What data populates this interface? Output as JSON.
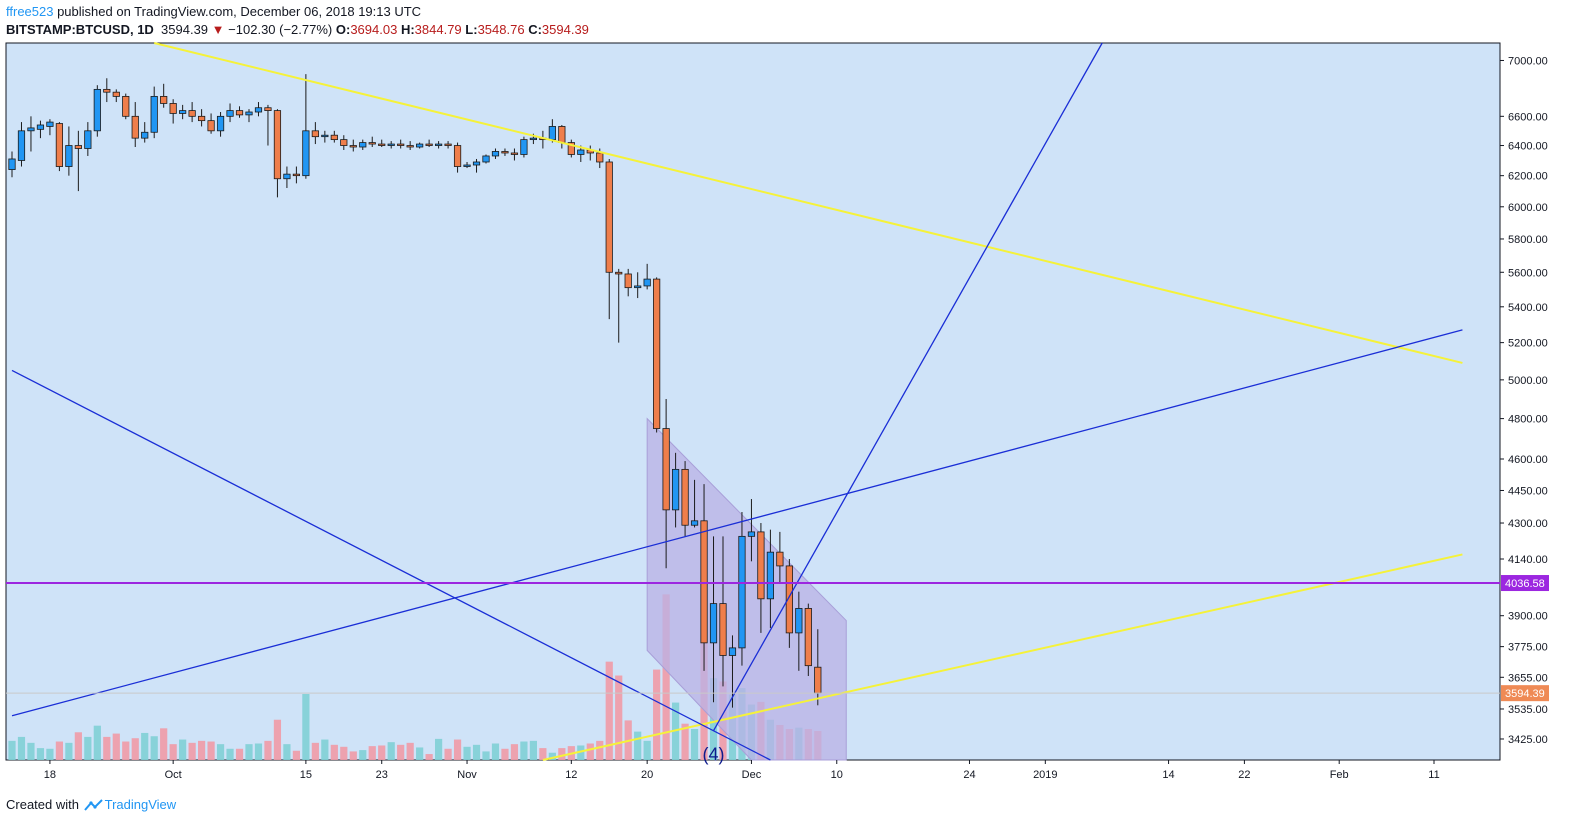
{
  "header": {
    "author": "ffree523",
    "published_text": " published on TradingView.com, December 06, 2018 19:13 UTC",
    "symbol": "BITSTAMP:BTCUSD, 1D",
    "last": "3594.39",
    "arrow": "▼",
    "change": "−102.30 (−2.77%)",
    "o_label": "O:",
    "o_value": "3694.03",
    "h_label": "H:",
    "h_value": "3844.79",
    "l_label": "L:",
    "l_value": "3548.76",
    "c_label": "C:",
    "c_value": "3594.39"
  },
  "footer": {
    "created_with": "Created with",
    "brand": "TradingView"
  },
  "colors": {
    "background": "#cfe3f8",
    "up": "#2196f3",
    "down": "#ef7e4b",
    "vol_up": "#7fcfd5",
    "vol_down": "#f09aa6",
    "yellow_line": "#f5f23a",
    "blue_line": "#1a2ed6",
    "purple_line": "#9c27e0",
    "channel_fill": "#b9b1e6",
    "price_label_bg": "#ef8a55"
  },
  "chart_data": {
    "type": "candlestick",
    "title": "BITSTAMP:BTCUSD, 1D",
    "y_scale": "log",
    "ylim": [
      3350,
      7130
    ],
    "price_ticks": [
      7000,
      6600,
      6400,
      6200,
      6000,
      5800,
      5600,
      5400,
      5200,
      5000,
      4800,
      4600,
      4450,
      4300,
      4140,
      3900,
      3775,
      3655,
      3535,
      3425
    ],
    "price_tick_labels": [
      "7000.00",
      "6600.00",
      "6400.00",
      "6200.00",
      "6000.00",
      "5800.00",
      "5600.00",
      "5400.00",
      "5200.00",
      "5000.00",
      "4800.00",
      "4600.00",
      "4450.00",
      "4300.00",
      "4140.00",
      "3900.00",
      "3775.00",
      "3655.00",
      "3535.00",
      "3425.00"
    ],
    "time_ticks": [
      {
        "label": "18",
        "day": 4
      },
      {
        "label": "Oct",
        "day": 17
      },
      {
        "label": "15",
        "day": 31
      },
      {
        "label": "23",
        "day": 39
      },
      {
        "label": "Nov",
        "day": 48
      },
      {
        "label": "12",
        "day": 59
      },
      {
        "label": "20",
        "day": 67
      },
      {
        "label": "Dec",
        "day": 78
      },
      {
        "label": "10",
        "day": 87
      },
      {
        "label": "24",
        "day": 101
      },
      {
        "label": "2019",
        "day": 109
      },
      {
        "label": "14",
        "day": 122
      },
      {
        "label": "22",
        "day": 130
      },
      {
        "label": "Feb",
        "day": 140
      },
      {
        "label": "11",
        "day": 150
      }
    ],
    "note_days": "day index 0 = first visible candle (Sep 14, 2018)",
    "candles": [
      {
        "d": 0,
        "o": 6240,
        "h": 6360,
        "l": 6190,
        "c": 6310
      },
      {
        "d": 1,
        "o": 6300,
        "h": 6560,
        "l": 6260,
        "c": 6500
      },
      {
        "d": 2,
        "o": 6500,
        "h": 6600,
        "l": 6360,
        "c": 6520
      },
      {
        "d": 3,
        "o": 6510,
        "h": 6570,
        "l": 6450,
        "c": 6540
      },
      {
        "d": 4,
        "o": 6530,
        "h": 6580,
        "l": 6470,
        "c": 6560
      },
      {
        "d": 5,
        "o": 6550,
        "h": 6560,
        "l": 6230,
        "c": 6260
      },
      {
        "d": 6,
        "o": 6260,
        "h": 6530,
        "l": 6200,
        "c": 6400
      },
      {
        "d": 7,
        "o": 6400,
        "h": 6500,
        "l": 6100,
        "c": 6380
      },
      {
        "d": 8,
        "o": 6380,
        "h": 6560,
        "l": 6330,
        "c": 6500
      },
      {
        "d": 9,
        "o": 6500,
        "h": 6820,
        "l": 6460,
        "c": 6790
      },
      {
        "d": 10,
        "o": 6790,
        "h": 6870,
        "l": 6700,
        "c": 6770
      },
      {
        "d": 11,
        "o": 6770,
        "h": 6790,
        "l": 6700,
        "c": 6740
      },
      {
        "d": 12,
        "o": 6740,
        "h": 6760,
        "l": 6580,
        "c": 6600
      },
      {
        "d": 13,
        "o": 6600,
        "h": 6700,
        "l": 6390,
        "c": 6450
      },
      {
        "d": 14,
        "o": 6450,
        "h": 6560,
        "l": 6420,
        "c": 6490
      },
      {
        "d": 15,
        "o": 6490,
        "h": 6810,
        "l": 6450,
        "c": 6740
      },
      {
        "d": 16,
        "o": 6740,
        "h": 6830,
        "l": 6660,
        "c": 6690
      },
      {
        "d": 17,
        "o": 6690,
        "h": 6720,
        "l": 6550,
        "c": 6620
      },
      {
        "d": 18,
        "o": 6620,
        "h": 6680,
        "l": 6580,
        "c": 6640
      },
      {
        "d": 19,
        "o": 6640,
        "h": 6700,
        "l": 6560,
        "c": 6600
      },
      {
        "d": 20,
        "o": 6600,
        "h": 6650,
        "l": 6530,
        "c": 6570
      },
      {
        "d": 21,
        "o": 6570,
        "h": 6620,
        "l": 6480,
        "c": 6500
      },
      {
        "d": 22,
        "o": 6500,
        "h": 6630,
        "l": 6460,
        "c": 6600
      },
      {
        "d": 23,
        "o": 6600,
        "h": 6690,
        "l": 6560,
        "c": 6640
      },
      {
        "d": 24,
        "o": 6640,
        "h": 6670,
        "l": 6590,
        "c": 6610
      },
      {
        "d": 25,
        "o": 6610,
        "h": 6650,
        "l": 6560,
        "c": 6630
      },
      {
        "d": 26,
        "o": 6630,
        "h": 6700,
        "l": 6600,
        "c": 6660
      },
      {
        "d": 27,
        "o": 6660,
        "h": 6680,
        "l": 6400,
        "c": 6640
      },
      {
        "d": 28,
        "o": 6640,
        "h": 6650,
        "l": 6060,
        "c": 6180
      },
      {
        "d": 29,
        "o": 6180,
        "h": 6260,
        "l": 6120,
        "c": 6210
      },
      {
        "d": 30,
        "o": 6210,
        "h": 6260,
        "l": 6150,
        "c": 6200
      },
      {
        "d": 31,
        "o": 6200,
        "h": 6900,
        "l": 6180,
        "c": 6500
      },
      {
        "d": 32,
        "o": 6500,
        "h": 6560,
        "l": 6410,
        "c": 6460
      },
      {
        "d": 33,
        "o": 6460,
        "h": 6500,
        "l": 6420,
        "c": 6470
      },
      {
        "d": 34,
        "o": 6470,
        "h": 6500,
        "l": 6420,
        "c": 6440
      },
      {
        "d": 35,
        "o": 6440,
        "h": 6470,
        "l": 6370,
        "c": 6400
      },
      {
        "d": 36,
        "o": 6400,
        "h": 6440,
        "l": 6360,
        "c": 6390
      },
      {
        "d": 37,
        "o": 6390,
        "h": 6440,
        "l": 6370,
        "c": 6420
      },
      {
        "d": 38,
        "o": 6420,
        "h": 6460,
        "l": 6390,
        "c": 6410
      },
      {
        "d": 39,
        "o": 6410,
        "h": 6440,
        "l": 6390,
        "c": 6400
      },
      {
        "d": 40,
        "o": 6400,
        "h": 6430,
        "l": 6380,
        "c": 6410
      },
      {
        "d": 41,
        "o": 6410,
        "h": 6440,
        "l": 6380,
        "c": 6400
      },
      {
        "d": 42,
        "o": 6400,
        "h": 6430,
        "l": 6370,
        "c": 6390
      },
      {
        "d": 43,
        "o": 6390,
        "h": 6420,
        "l": 6380,
        "c": 6410
      },
      {
        "d": 44,
        "o": 6410,
        "h": 6440,
        "l": 6390,
        "c": 6400
      },
      {
        "d": 45,
        "o": 6400,
        "h": 6430,
        "l": 6380,
        "c": 6410
      },
      {
        "d": 46,
        "o": 6410,
        "h": 6430,
        "l": 6380,
        "c": 6400
      },
      {
        "d": 47,
        "o": 6400,
        "h": 6420,
        "l": 6220,
        "c": 6260
      },
      {
        "d": 48,
        "o": 6260,
        "h": 6290,
        "l": 6250,
        "c": 6270
      },
      {
        "d": 49,
        "o": 6270,
        "h": 6310,
        "l": 6220,
        "c": 6290
      },
      {
        "d": 50,
        "o": 6290,
        "h": 6340,
        "l": 6280,
        "c": 6330
      },
      {
        "d": 51,
        "o": 6330,
        "h": 6380,
        "l": 6310,
        "c": 6360
      },
      {
        "d": 52,
        "o": 6360,
        "h": 6380,
        "l": 6330,
        "c": 6350
      },
      {
        "d": 53,
        "o": 6350,
        "h": 6380,
        "l": 6300,
        "c": 6340
      },
      {
        "d": 54,
        "o": 6340,
        "h": 6460,
        "l": 6320,
        "c": 6440
      },
      {
        "d": 55,
        "o": 6440,
        "h": 6480,
        "l": 6410,
        "c": 6450
      },
      {
        "d": 56,
        "o": 6450,
        "h": 6500,
        "l": 6380,
        "c": 6440
      },
      {
        "d": 57,
        "o": 6440,
        "h": 6580,
        "l": 6420,
        "c": 6530
      },
      {
        "d": 58,
        "o": 6530,
        "h": 6540,
        "l": 6380,
        "c": 6420
      },
      {
        "d": 59,
        "o": 6420,
        "h": 6440,
        "l": 6320,
        "c": 6340
      },
      {
        "d": 60,
        "o": 6340,
        "h": 6400,
        "l": 6290,
        "c": 6370
      },
      {
        "d": 61,
        "o": 6370,
        "h": 6400,
        "l": 6300,
        "c": 6350
      },
      {
        "d": 62,
        "o": 6350,
        "h": 6380,
        "l": 6250,
        "c": 6290
      },
      {
        "d": 63,
        "o": 6290,
        "h": 6310,
        "l": 5330,
        "c": 5600
      },
      {
        "d": 64,
        "o": 5600,
        "h": 5620,
        "l": 5200,
        "c": 5590
      },
      {
        "d": 65,
        "o": 5590,
        "h": 5620,
        "l": 5460,
        "c": 5510
      },
      {
        "d": 66,
        "o": 5510,
        "h": 5600,
        "l": 5450,
        "c": 5520
      },
      {
        "d": 67,
        "o": 5520,
        "h": 5650,
        "l": 5500,
        "c": 5560
      },
      {
        "d": 68,
        "o": 5560,
        "h": 5570,
        "l": 4730,
        "c": 4750
      },
      {
        "d": 69,
        "o": 4750,
        "h": 4900,
        "l": 4100,
        "c": 4360
      },
      {
        "d": 70,
        "o": 4360,
        "h": 4630,
        "l": 4280,
        "c": 4550
      },
      {
        "d": 71,
        "o": 4550,
        "h": 4590,
        "l": 4240,
        "c": 4290
      },
      {
        "d": 72,
        "o": 4290,
        "h": 4500,
        "l": 4280,
        "c": 4310
      },
      {
        "d": 73,
        "o": 4310,
        "h": 4480,
        "l": 3680,
        "c": 3790
      },
      {
        "d": 74,
        "o": 3790,
        "h": 4240,
        "l": 3560,
        "c": 3950
      },
      {
        "d": 75,
        "o": 3950,
        "h": 4240,
        "l": 3620,
        "c": 3740
      },
      {
        "d": 76,
        "o": 3740,
        "h": 3820,
        "l": 3540,
        "c": 3770
      },
      {
        "d": 77,
        "o": 3770,
        "h": 4350,
        "l": 3700,
        "c": 4240
      },
      {
        "d": 78,
        "o": 4240,
        "h": 4410,
        "l": 4130,
        "c": 4260
      },
      {
        "d": 79,
        "o": 4260,
        "h": 4300,
        "l": 3830,
        "c": 3970
      },
      {
        "d": 80,
        "o": 3970,
        "h": 4270,
        "l": 3850,
        "c": 4170
      },
      {
        "d": 81,
        "o": 4170,
        "h": 4260,
        "l": 4040,
        "c": 4110
      },
      {
        "d": 82,
        "o": 4110,
        "h": 4140,
        "l": 3770,
        "c": 3830
      },
      {
        "d": 83,
        "o": 3830,
        "h": 4000,
        "l": 3680,
        "c": 3930
      },
      {
        "d": 84,
        "o": 3930,
        "h": 3950,
        "l": 3660,
        "c": 3700
      },
      {
        "d": 85,
        "o": 3694.03,
        "h": 3844.79,
        "l": 3548.76,
        "c": 3594.39
      }
    ],
    "volume": [
      0.29,
      0.35,
      0.26,
      0.18,
      0.17,
      0.28,
      0.26,
      0.42,
      0.35,
      0.52,
      0.35,
      0.4,
      0.28,
      0.33,
      0.41,
      0.36,
      0.48,
      0.24,
      0.31,
      0.26,
      0.29,
      0.28,
      0.24,
      0.17,
      0.17,
      0.24,
      0.25,
      0.29,
      0.61,
      0.24,
      0.14,
      1.0,
      0.26,
      0.31,
      0.23,
      0.2,
      0.13,
      0.15,
      0.21,
      0.22,
      0.27,
      0.23,
      0.26,
      0.19,
      0.09,
      0.32,
      0.17,
      0.31,
      0.2,
      0.23,
      0.13,
      0.25,
      0.17,
      0.24,
      0.28,
      0.29,
      0.18,
      0.11,
      0.18,
      0.21,
      0.22,
      0.25,
      0.29,
      1.49,
      1.28,
      0.6,
      0.43,
      0.29,
      1.37,
      2.51,
      0.87,
      0.55,
      0.47,
      1.77,
      1.24,
      1.19,
      0.99,
      1.09,
      0.84,
      0.88,
      0.61,
      0.53,
      0.47,
      0.49,
      0.47,
      0.44
    ],
    "volume_unit": "relative",
    "trendlines": [
      {
        "name": "yellow-descending-resistance",
        "color": "yellow",
        "p1": {
          "day": 15,
          "price": 7130
        },
        "p2": {
          "day": 153,
          "price": 5090
        }
      },
      {
        "name": "yellow-ascending-support",
        "color": "yellow",
        "p1": {
          "day": 56,
          "price": 3350
        },
        "p2": {
          "day": 153,
          "price": 4160
        }
      },
      {
        "name": "blue-ascending-line",
        "color": "blue",
        "p1": {
          "day": 0,
          "price": 3510
        },
        "p2": {
          "day": 153,
          "price": 5270
        }
      },
      {
        "name": "blue-descending-line",
        "color": "blue",
        "p1": {
          "day": 0,
          "price": 5050
        },
        "p2": {
          "day": 80,
          "price": 3350
        }
      },
      {
        "name": "blue-steep-line",
        "color": "blue",
        "p1": {
          "day": 74,
          "price": 3455
        },
        "p2": {
          "day": 115,
          "price": 7130
        }
      }
    ],
    "horizontal_level": {
      "price": 4036.58,
      "label": "4036.58"
    },
    "current_price_label": "3594.39",
    "current_price": 3594.39,
    "channel": {
      "top_from": {
        "day": 67,
        "price": 4800
      },
      "top_to": {
        "day": 88,
        "price": 3880
      },
      "bottom_from": {
        "day": 67,
        "price": 3760
      },
      "bottom_to": {
        "day": 78,
        "price": 3350
      },
      "right_day": 88
    },
    "wave_label": "(4)",
    "wave_point": {
      "day": 74,
      "price": 3370
    }
  }
}
